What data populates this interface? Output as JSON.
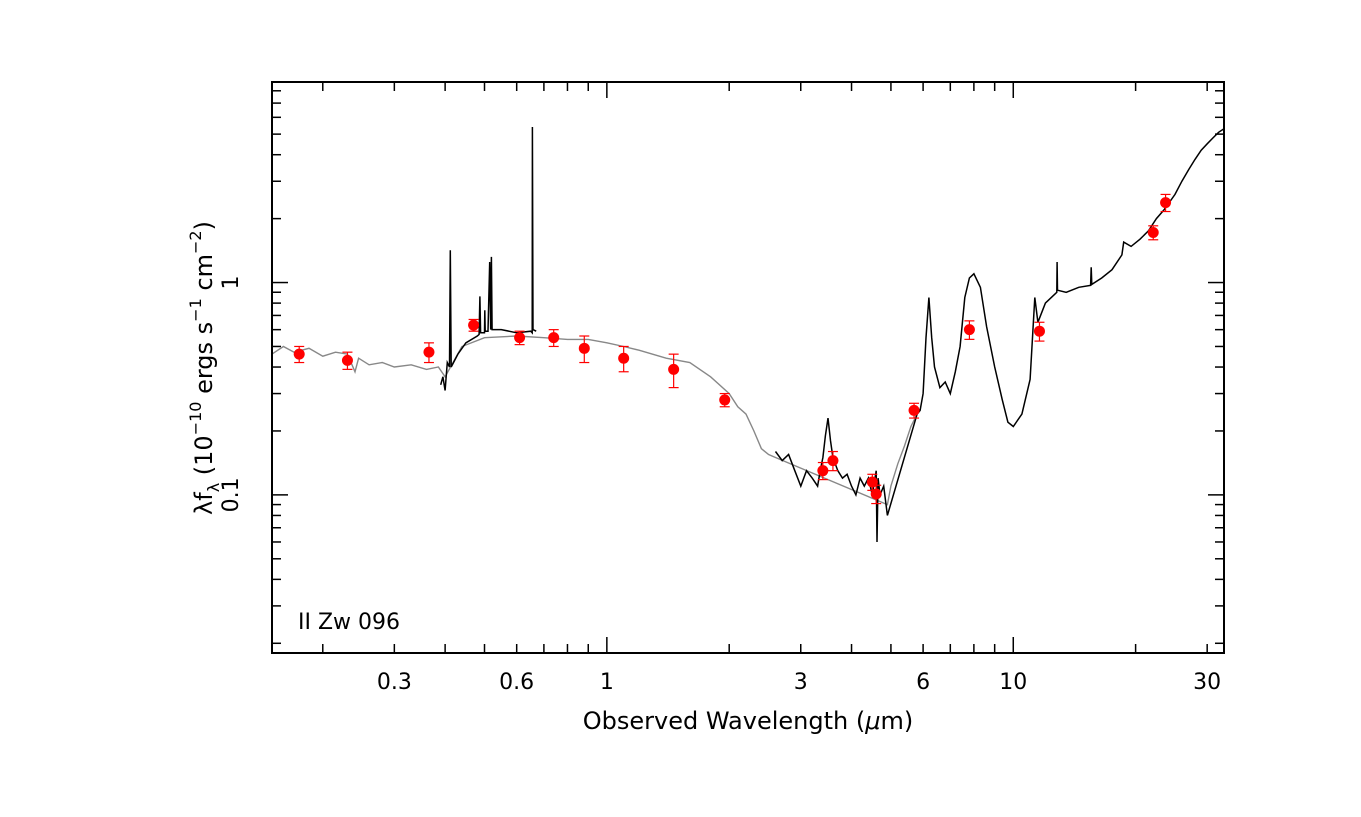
{
  "chart_data": {
    "type": "scatter",
    "object_label": "II Zw 096",
    "xlabel_prefix": "Observed Wavelength (",
    "xlabel_mu": "μ",
    "xlabel_suffix": "m)",
    "ylabel": {
      "lam": "λ",
      "f": "f",
      "f_sub": "λ",
      "open": " (10",
      "exp1": "−10",
      "mid1": " ergs s",
      "exp2": "−1",
      "mid2": " cm",
      "exp3": "−2",
      "close": ")"
    },
    "x_scale": "log",
    "y_scale": "log",
    "xlim": [
      0.15,
      33
    ],
    "ylim": [
      0.018,
      8.8
    ],
    "x_ticks": [
      {
        "value": 0.3,
        "label": "0.3"
      },
      {
        "value": 0.6,
        "label": "0.6"
      },
      {
        "value": 1,
        "label": "1"
      },
      {
        "value": 3,
        "label": "3"
      },
      {
        "value": 6,
        "label": "6"
      },
      {
        "value": 10,
        "label": "10"
      },
      {
        "value": 30,
        "label": "30"
      }
    ],
    "y_ticks": [
      {
        "value": 0.1,
        "label": "0.1"
      },
      {
        "value": 1,
        "label": "1"
      }
    ],
    "grid": false,
    "colors": {
      "photometry": "#ff0000",
      "observed_spectrum": "#000000",
      "model_sed": "#888888"
    },
    "photometry": [
      {
        "x": 0.175,
        "y": 0.46,
        "err": 0.04
      },
      {
        "x": 0.23,
        "y": 0.43,
        "err": 0.04
      },
      {
        "x": 0.365,
        "y": 0.47,
        "err": 0.05
      },
      {
        "x": 0.47,
        "y": 0.63,
        "err": 0.04
      },
      {
        "x": 0.61,
        "y": 0.55,
        "err": 0.04
      },
      {
        "x": 0.74,
        "y": 0.55,
        "err": 0.05
      },
      {
        "x": 0.88,
        "y": 0.49,
        "err": 0.07
      },
      {
        "x": 1.1,
        "y": 0.44,
        "err": 0.06
      },
      {
        "x": 1.46,
        "y": 0.39,
        "err": 0.07
      },
      {
        "x": 1.95,
        "y": 0.28,
        "err": 0.02
      },
      {
        "x": 3.4,
        "y": 0.13,
        "err": 0.012
      },
      {
        "x": 3.6,
        "y": 0.145,
        "err": 0.015
      },
      {
        "x": 4.5,
        "y": 0.115,
        "err": 0.01
      },
      {
        "x": 4.6,
        "y": 0.101,
        "err": 0.01
      },
      {
        "x": 5.7,
        "y": 0.25,
        "err": 0.02
      },
      {
        "x": 7.8,
        "y": 0.6,
        "err": 0.06
      },
      {
        "x": 11.6,
        "y": 0.59,
        "err": 0.06
      },
      {
        "x": 22.1,
        "y": 1.72,
        "err": 0.13
      },
      {
        "x": 23.7,
        "y": 2.38,
        "err": 0.22
      }
    ],
    "model_sed": [
      [
        0.15,
        0.46
      ],
      [
        0.16,
        0.5
      ],
      [
        0.17,
        0.47
      ],
      [
        0.185,
        0.49
      ],
      [
        0.2,
        0.45
      ],
      [
        0.215,
        0.47
      ],
      [
        0.23,
        0.46
      ],
      [
        0.24,
        0.38
      ],
      [
        0.245,
        0.44
      ],
      [
        0.26,
        0.41
      ],
      [
        0.28,
        0.42
      ],
      [
        0.3,
        0.4
      ],
      [
        0.33,
        0.41
      ],
      [
        0.36,
        0.39
      ],
      [
        0.385,
        0.4
      ],
      [
        0.4,
        0.36
      ],
      [
        0.44,
        0.5
      ],
      [
        0.5,
        0.55
      ],
      [
        0.6,
        0.56
      ],
      [
        0.7,
        0.55
      ],
      [
        0.8,
        0.54
      ],
      [
        0.9,
        0.54
      ],
      [
        1.0,
        0.52
      ],
      [
        1.1,
        0.5
      ],
      [
        1.2,
        0.48
      ],
      [
        1.4,
        0.44
      ],
      [
        1.6,
        0.42
      ],
      [
        1.8,
        0.36
      ],
      [
        2.0,
        0.3
      ],
      [
        2.1,
        0.26
      ],
      [
        2.2,
        0.24
      ],
      [
        2.3,
        0.2
      ],
      [
        2.4,
        0.165
      ],
      [
        2.5,
        0.155
      ],
      [
        2.6,
        0.15
      ],
      [
        4.9,
        0.09
      ],
      [
        5.0,
        0.11
      ],
      [
        5.2,
        0.14
      ],
      [
        5.4,
        0.17
      ],
      [
        5.6,
        0.21
      ],
      [
        5.8,
        0.24
      ]
    ],
    "observed_spectrum": [
      [
        0.39,
        0.33
      ],
      [
        0.395,
        0.36
      ],
      [
        0.4,
        0.31
      ],
      [
        0.405,
        0.42
      ],
      [
        0.41,
        0.4
      ],
      [
        0.412,
        1.42
      ],
      [
        0.414,
        0.4
      ],
      [
        0.43,
        0.46
      ],
      [
        0.45,
        0.52
      ],
      [
        0.48,
        0.56
      ],
      [
        0.485,
        0.57
      ],
      [
        0.487,
        0.86
      ],
      [
        0.489,
        0.58
      ],
      [
        0.5,
        0.58
      ],
      [
        0.5007,
        0.74
      ],
      [
        0.502,
        0.59
      ],
      [
        0.51,
        0.59
      ],
      [
        0.515,
        1.25
      ],
      [
        0.518,
        0.6
      ],
      [
        0.52,
        1.32
      ],
      [
        0.522,
        0.6
      ],
      [
        0.55,
        0.6
      ],
      [
        0.6,
        0.58
      ],
      [
        0.65,
        0.59
      ],
      [
        0.655,
        0.58
      ],
      [
        0.656,
        5.4
      ],
      [
        0.658,
        0.6
      ],
      [
        0.67,
        0.59
      ],
      [
        2.6,
        0.16
      ],
      [
        2.7,
        0.145
      ],
      [
        2.8,
        0.155
      ],
      [
        2.9,
        0.13
      ],
      [
        3.0,
        0.11
      ],
      [
        3.1,
        0.13
      ],
      [
        3.2,
        0.12
      ],
      [
        3.3,
        0.11
      ],
      [
        3.35,
        0.13
      ],
      [
        3.4,
        0.15
      ],
      [
        3.45,
        0.19
      ],
      [
        3.5,
        0.23
      ],
      [
        3.55,
        0.18
      ],
      [
        3.6,
        0.15
      ],
      [
        3.7,
        0.13
      ],
      [
        3.8,
        0.12
      ],
      [
        3.9,
        0.125
      ],
      [
        4.0,
        0.11
      ],
      [
        4.1,
        0.1
      ],
      [
        4.2,
        0.12
      ],
      [
        4.3,
        0.11
      ],
      [
        4.4,
        0.12
      ],
      [
        4.5,
        0.1
      ],
      [
        4.6,
        0.13
      ],
      [
        4.62,
        0.06
      ],
      [
        4.65,
        0.12
      ],
      [
        4.7,
        0.1
      ],
      [
        4.8,
        0.11
      ],
      [
        4.9,
        0.08
      ],
      [
        5.8,
        0.24
      ],
      [
        5.9,
        0.25
      ],
      [
        6.0,
        0.3
      ],
      [
        6.1,
        0.55
      ],
      [
        6.2,
        0.85
      ],
      [
        6.3,
        0.55
      ],
      [
        6.4,
        0.4
      ],
      [
        6.6,
        0.32
      ],
      [
        6.8,
        0.34
      ],
      [
        7.0,
        0.3
      ],
      [
        7.2,
        0.38
      ],
      [
        7.4,
        0.5
      ],
      [
        7.6,
        0.85
      ],
      [
        7.8,
        1.05
      ],
      [
        8.0,
        1.1
      ],
      [
        8.3,
        0.95
      ],
      [
        8.6,
        0.62
      ],
      [
        9.0,
        0.4
      ],
      [
        9.4,
        0.28
      ],
      [
        9.7,
        0.22
      ],
      [
        10.0,
        0.21
      ],
      [
        10.5,
        0.24
      ],
      [
        11.0,
        0.35
      ],
      [
        11.3,
        0.85
      ],
      [
        11.5,
        0.65
      ],
      [
        12.0,
        0.8
      ],
      [
        12.8,
        0.9
      ],
      [
        12.82,
        1.25
      ],
      [
        12.85,
        0.92
      ],
      [
        13.5,
        0.9
      ],
      [
        14.5,
        0.95
      ],
      [
        15.5,
        0.97
      ],
      [
        15.55,
        1.18
      ],
      [
        15.6,
        0.98
      ],
      [
        16.5,
        1.05
      ],
      [
        17.5,
        1.15
      ],
      [
        18.5,
        1.35
      ],
      [
        18.7,
        1.55
      ],
      [
        19.5,
        1.48
      ],
      [
        20.5,
        1.6
      ],
      [
        21.5,
        1.75
      ],
      [
        22.5,
        2.0
      ],
      [
        23.5,
        2.2
      ],
      [
        25,
        2.6
      ],
      [
        26,
        3.0
      ],
      [
        27,
        3.4
      ],
      [
        28,
        3.8
      ],
      [
        29,
        4.2
      ],
      [
        30,
        4.5
      ],
      [
        31,
        4.8
      ],
      [
        32,
        5.1
      ],
      [
        33,
        5.3
      ]
    ]
  }
}
